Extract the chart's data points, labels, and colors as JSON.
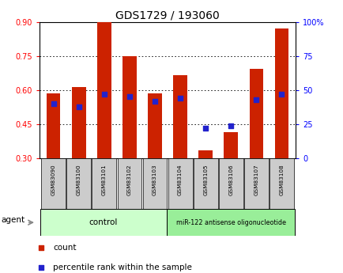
{
  "title": "GDS1729 / 193060",
  "samples": [
    "GSM83090",
    "GSM83100",
    "GSM83101",
    "GSM83102",
    "GSM83103",
    "GSM83104",
    "GSM83105",
    "GSM83106",
    "GSM83107",
    "GSM83108"
  ],
  "count_values": [
    0.585,
    0.615,
    0.9,
    0.75,
    0.585,
    0.665,
    0.335,
    0.415,
    0.695,
    0.87
  ],
  "percentile_values": [
    40,
    38,
    47,
    45,
    42,
    44,
    22,
    24,
    43,
    47
  ],
  "bar_bottom": 0.3,
  "ylim_left": [
    0.3,
    0.9
  ],
  "ylim_right": [
    0,
    100
  ],
  "yticks_left": [
    0.3,
    0.45,
    0.6,
    0.75,
    0.9
  ],
  "yticks_right": [
    0,
    25,
    50,
    75,
    100
  ],
  "ytick_labels_right": [
    "0",
    "25",
    "50",
    "75",
    "100%"
  ],
  "bar_color": "#cc2200",
  "dot_color": "#2222cc",
  "control_label": "control",
  "treatment_label": "miR-122 antisense oligonucleotide",
  "agent_label": "agent",
  "control_bg": "#ccffcc",
  "treatment_bg": "#99ee99",
  "tick_label_area_bg": "#cccccc",
  "legend_count_color": "#cc2200",
  "legend_pct_color": "#2222cc",
  "legend_count_label": "count",
  "legend_pct_label": "percentile rank within the sample",
  "title_fontsize": 10,
  "bar_width": 0.55
}
